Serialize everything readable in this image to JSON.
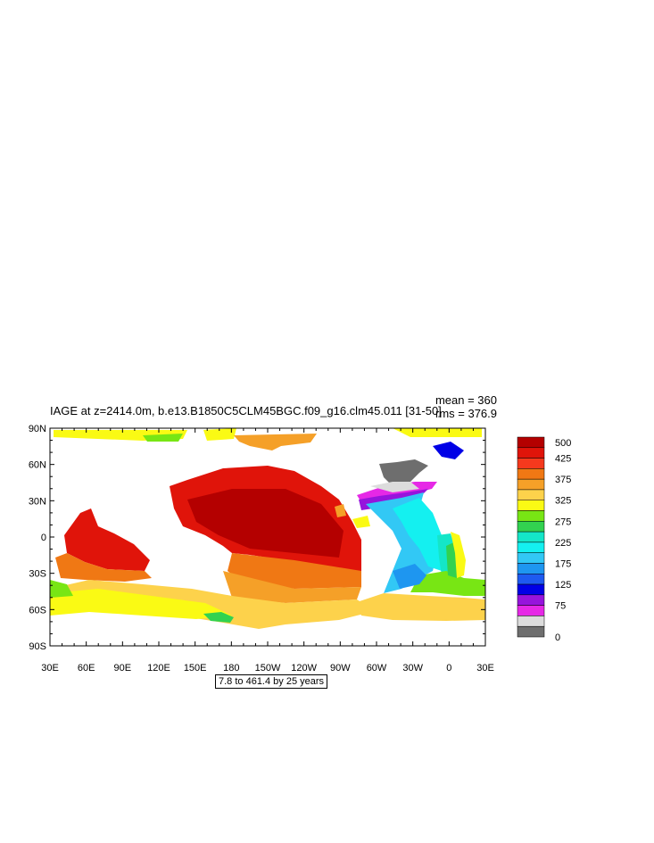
{
  "title": "IAGE at z=2414.0m, b.e13.B1850C5CLM45BGC.f09_g16.clm45.011 [31-50]",
  "mean_label": "mean = 360",
  "rms_label": "rms = 376.9",
  "contour_info": "7.8 to 461.4 by 25 years",
  "lat_labels": [
    "90N",
    "60N",
    "30N",
    "0",
    "30S",
    "60S",
    "90S"
  ],
  "lon_labels": [
    "30E",
    "60E",
    "90E",
    "120E",
    "150E",
    "180",
    "150W",
    "120W",
    "90W",
    "60W",
    "30W",
    "0",
    "30E"
  ],
  "colorbar": {
    "labels": [
      "500",
      "425",
      "375",
      "325",
      "275",
      "225",
      "175",
      "125",
      "75",
      "0"
    ],
    "colors": [
      "#b40000",
      "#e0140a",
      "#f5391d",
      "#f07814",
      "#f5a028",
      "#fdd24b",
      "#fafa14",
      "#78e614",
      "#32d250",
      "#14e6c8",
      "#14f0f0",
      "#32c8f5",
      "#1e96f0",
      "#1e5af0",
      "#0000e6",
      "#9614dc",
      "#e628e6",
      "#dcdcdc",
      "#6e6e6e"
    ]
  }
}
